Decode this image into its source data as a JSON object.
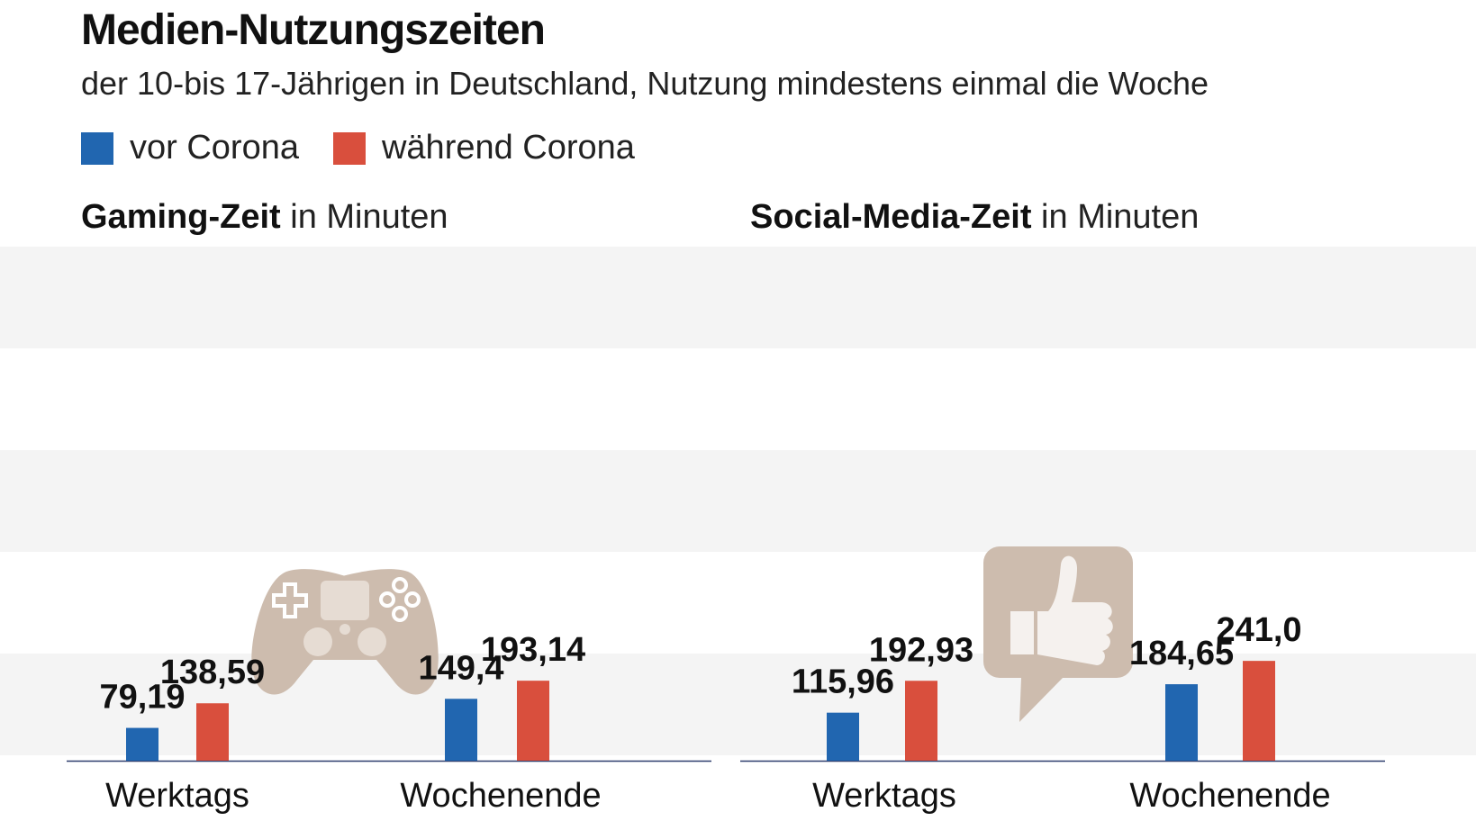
{
  "header": {
    "title": "Medien-Nutzungszeiten",
    "subtitle": "der 10-bis 17-Jährigen in Deutschland, Nutzung mindestens einmal die Woche"
  },
  "legend": {
    "items": [
      {
        "label": "vor Corona",
        "color": "#2166b0"
      },
      {
        "label": "während Corona",
        "color": "#d94f3d"
      }
    ]
  },
  "panels": [
    {
      "title_bold": "Gaming-Zeit",
      "title_rest": " in Minuten",
      "icon": "gamepad-icon"
    },
    {
      "title_bold": "Social-Media-Zeit",
      "title_rest": " in Minuten",
      "icon": "thumbs-up-icon"
    }
  ],
  "chart_data": [
    {
      "type": "bar",
      "title": "Gaming-Zeit in Minuten",
      "categories": [
        "Werktags",
        "Wochenende"
      ],
      "series": [
        {
          "name": "vor Corona",
          "values": [
            79.19,
            149.4
          ],
          "labels": [
            "79,19",
            "149,4"
          ]
        },
        {
          "name": "während Corona",
          "values": [
            138.59,
            193.14
          ],
          "labels": [
            "138,59",
            "193,14"
          ]
        }
      ],
      "ylim": [
        0,
        250
      ],
      "grid": "horizontal bands"
    },
    {
      "type": "bar",
      "title": "Social-Media-Zeit in Minuten",
      "categories": [
        "Werktags",
        "Wochenende"
      ],
      "series": [
        {
          "name": "vor Corona",
          "values": [
            115.96,
            184.65
          ],
          "labels": [
            "115,96",
            "184,65"
          ]
        },
        {
          "name": "während Corona",
          "values": [
            192.93,
            241.0
          ],
          "labels": [
            "192,93",
            "241,0"
          ]
        }
      ],
      "ylim": [
        0,
        250
      ],
      "grid": "horizontal bands"
    }
  ]
}
